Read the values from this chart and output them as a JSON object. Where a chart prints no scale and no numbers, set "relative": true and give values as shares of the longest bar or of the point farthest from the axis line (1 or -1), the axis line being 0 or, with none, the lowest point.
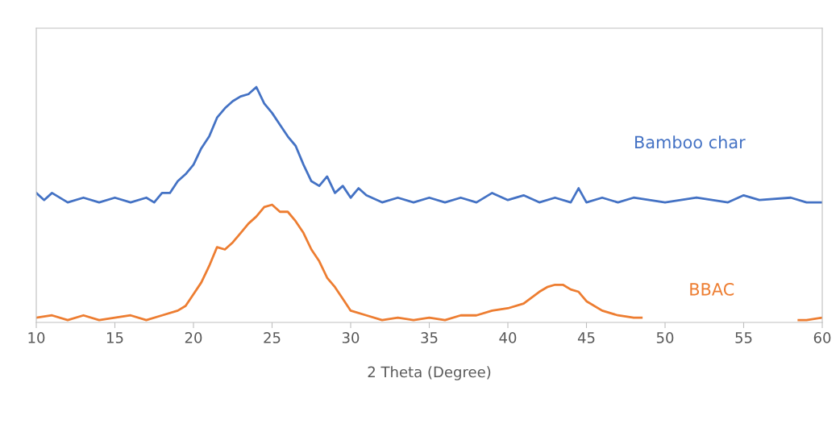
{
  "chart_data": {
    "type": "line",
    "relative": true,
    "xlabel": "2 Theta (Degree)",
    "xlim": [
      10,
      60
    ],
    "xticks": [
      10,
      15,
      20,
      25,
      30,
      35,
      40,
      45,
      50,
      55,
      60
    ],
    "grid": false,
    "legend": false,
    "marker": "none",
    "line_style": "solid",
    "series": [
      {
        "name": "Bamboo char",
        "color": "#4472c4",
        "x": [
          10,
          10.5,
          11,
          12,
          13,
          14,
          15,
          16,
          17,
          17.5,
          18,
          18.5,
          19,
          19.5,
          20,
          20.5,
          21,
          21.5,
          22,
          22.5,
          23,
          23.5,
          24,
          24.5,
          25,
          25.5,
          26,
          26.5,
          27,
          27.5,
          28,
          28.5,
          29,
          29.5,
          30,
          30.5,
          31,
          32,
          33,
          34,
          35,
          36,
          37,
          38,
          39,
          40,
          41,
          42,
          43,
          44,
          44.5,
          45,
          46,
          47,
          48,
          50,
          52,
          54,
          55,
          56,
          58,
          59,
          60
        ],
        "values": [
          0.55,
          0.52,
          0.55,
          0.51,
          0.53,
          0.51,
          0.53,
          0.51,
          0.53,
          0.51,
          0.55,
          0.55,
          0.6,
          0.63,
          0.67,
          0.74,
          0.79,
          0.87,
          0.91,
          0.94,
          0.96,
          0.97,
          1.0,
          0.93,
          0.89,
          0.84,
          0.79,
          0.75,
          0.67,
          0.6,
          0.58,
          0.62,
          0.55,
          0.58,
          0.53,
          0.57,
          0.54,
          0.51,
          0.53,
          0.51,
          0.53,
          0.51,
          0.53,
          0.51,
          0.55,
          0.52,
          0.54,
          0.51,
          0.53,
          0.51,
          0.57,
          0.51,
          0.53,
          0.51,
          0.53,
          0.51,
          0.53,
          0.51,
          0.54,
          0.52,
          0.53,
          0.51,
          0.51
        ]
      },
      {
        "name": "BBAC",
        "color": "#ed7d31",
        "x": [
          10,
          11,
          12,
          13,
          14,
          15,
          16,
          17,
          18,
          19,
          19.5,
          20,
          20.5,
          21,
          21.5,
          22,
          22.5,
          23,
          23.5,
          24,
          24.5,
          25,
          25.5,
          26,
          26.5,
          27,
          27.5,
          28,
          28.5,
          29,
          29.5,
          30,
          31,
          32,
          33,
          34,
          35,
          36,
          37,
          38,
          39,
          40,
          41,
          42,
          42.5,
          43,
          43.5,
          44,
          44.5,
          45,
          46,
          47,
          48,
          48.5,
          53,
          58.5,
          59,
          60
        ],
        "values": [
          0.02,
          0.03,
          0.01,
          0.03,
          0.01,
          0.02,
          0.03,
          0.01,
          0.03,
          0.05,
          0.07,
          0.12,
          0.17,
          0.24,
          0.32,
          0.31,
          0.34,
          0.38,
          0.42,
          0.45,
          0.49,
          0.5,
          0.47,
          0.47,
          0.43,
          0.38,
          0.31,
          0.26,
          0.19,
          0.15,
          0.1,
          0.05,
          0.03,
          0.01,
          0.02,
          0.01,
          0.02,
          0.01,
          0.03,
          0.03,
          0.05,
          0.06,
          0.08,
          0.13,
          0.15,
          0.16,
          0.16,
          0.14,
          0.13,
          0.09,
          0.05,
          0.03,
          0.02,
          0.02,
          null,
          0.01,
          0.01,
          0.02
        ]
      }
    ]
  }
}
